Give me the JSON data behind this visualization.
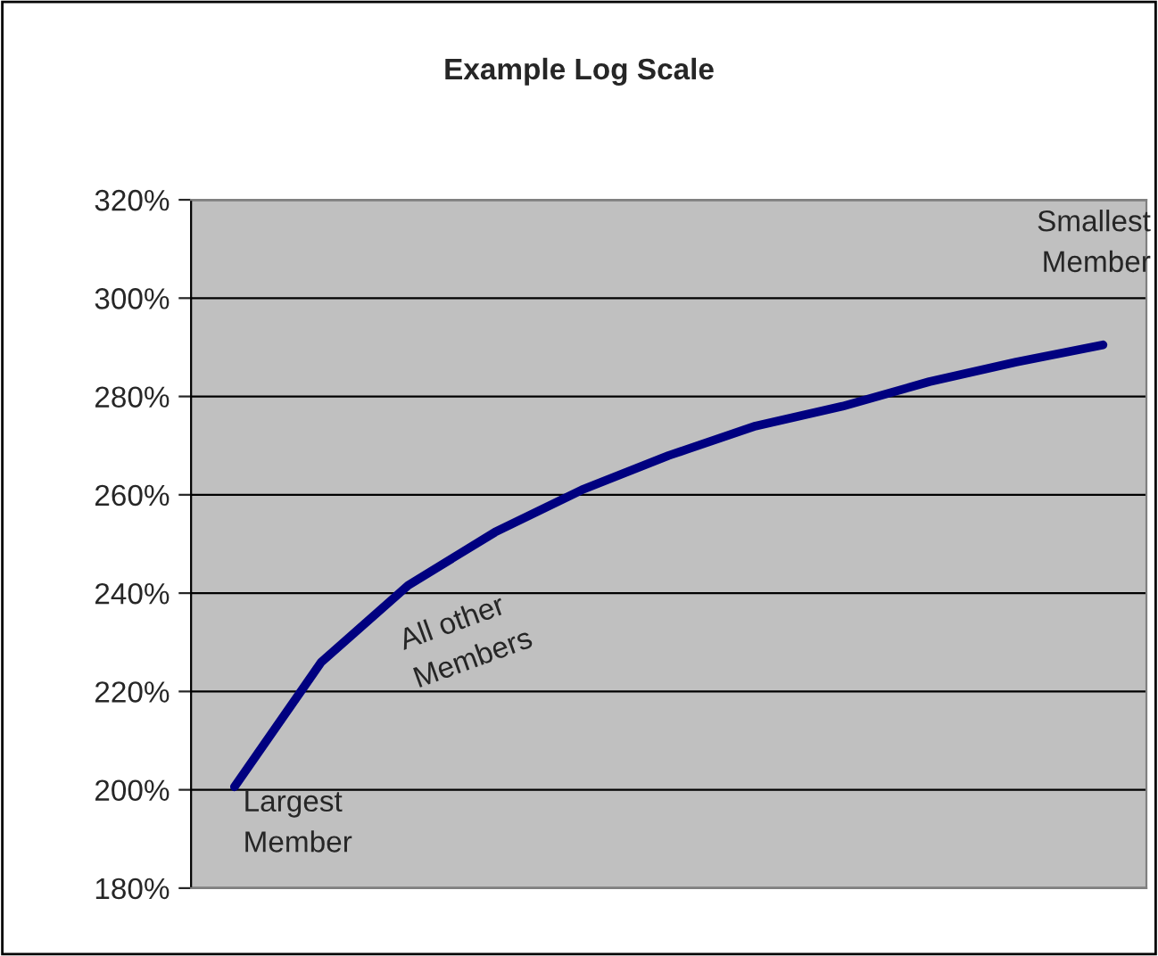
{
  "chart_data": {
    "type": "line",
    "title": "Example Log Scale",
    "categories": [
      null,
      null,
      null,
      null,
      null,
      null,
      null,
      null,
      null,
      null,
      null
    ],
    "series": [
      {
        "color": "#000080",
        "values": [
          200.6,
          226,
          241.6,
          252.4,
          261,
          268,
          274,
          278,
          283,
          287,
          290.5
        ]
      }
    ],
    "ylim": [
      180,
      320
    ],
    "yticks": [
      {
        "value": 180,
        "label": "180%"
      },
      {
        "value": 200,
        "label": "200%"
      },
      {
        "value": 220,
        "label": "220%"
      },
      {
        "value": 240,
        "label": "240%"
      },
      {
        "value": 260,
        "label": "260%"
      },
      {
        "value": 280,
        "label": "280%"
      },
      {
        "value": 300,
        "label": "300%"
      },
      {
        "value": 320,
        "label": "320%"
      }
    ],
    "grid": "y",
    "tick_labels": "y",
    "marker": "none",
    "line_style": "solid",
    "annotations": [
      "Largest\nMember",
      "All other\nMembers",
      "Smallest\nMember"
    ]
  }
}
